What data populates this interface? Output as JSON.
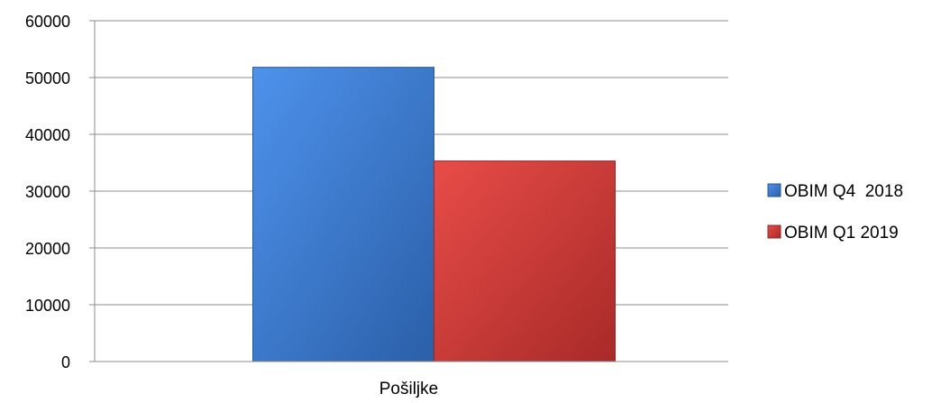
{
  "chart_data": {
    "type": "bar",
    "title": "",
    "xlabel": "",
    "ylabel": "",
    "categories": [
      "Pošiljke"
    ],
    "series": [
      {
        "name": "OBIM Q4  2018",
        "values": [
          51800
        ],
        "color": "#3f7fd6"
      },
      {
        "name": "OBIM Q1 2019",
        "values": [
          35300
        ],
        "color": "#d63d3d"
      }
    ],
    "ylim": [
      0,
      60000
    ],
    "yticks": [
      "0",
      "10000",
      "20000",
      "30000",
      "40000",
      "50000",
      "60000"
    ],
    "grid": true,
    "legend_position": "right"
  }
}
